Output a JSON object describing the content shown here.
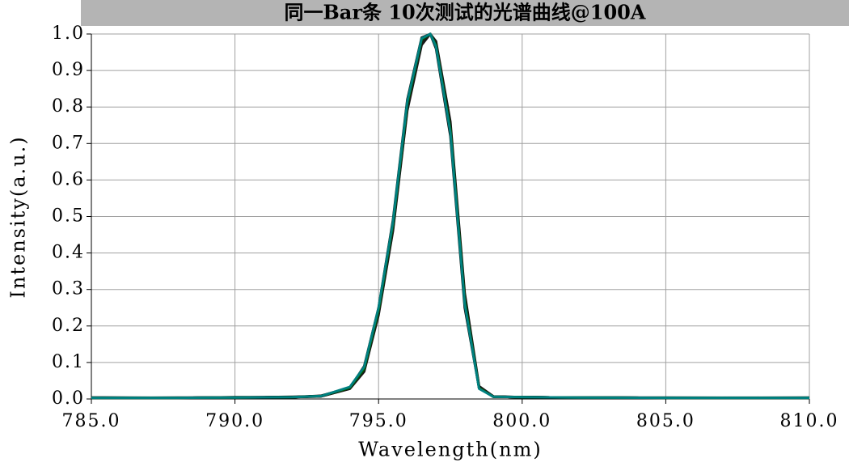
{
  "chart_data": {
    "type": "line",
    "title": "同一Bar条 10次测试的光谱曲线@100A",
    "x_label": "Wavelength(nm)",
    "y_label": "Intensity(a.u.)",
    "x": [
      785,
      788,
      790,
      792,
      793,
      794,
      794.5,
      795,
      795.5,
      796,
      796.5,
      796.8,
      797,
      797.5,
      798,
      798.5,
      799,
      800,
      802,
      805,
      810
    ],
    "series": [
      {
        "color": "#000000",
        "values": [
          0.003,
          0.003,
          0.004,
          0.005,
          0.008,
          0.03,
          0.08,
          0.24,
          0.47,
          0.8,
          0.98,
          1.0,
          0.97,
          0.74,
          0.27,
          0.03,
          0.006,
          0.005,
          0.004,
          0.003,
          0.003
        ]
      },
      {
        "color": "#0a0a0a",
        "values": [
          0.003,
          0.003,
          0.004,
          0.005,
          0.008,
          0.03,
          0.09,
          0.25,
          0.49,
          0.82,
          0.99,
          1.0,
          0.96,
          0.72,
          0.25,
          0.03,
          0.006,
          0.005,
          0.004,
          0.003,
          0.003
        ]
      },
      {
        "color": "#141414",
        "values": [
          0.004,
          0.003,
          0.004,
          0.005,
          0.007,
          0.028,
          0.075,
          0.23,
          0.46,
          0.79,
          0.97,
          1.0,
          0.98,
          0.76,
          0.29,
          0.035,
          0.007,
          0.005,
          0.004,
          0.004,
          0.003
        ]
      },
      {
        "color": "#000000",
        "values": [
          0.003,
          0.004,
          0.004,
          0.005,
          0.008,
          0.032,
          0.085,
          0.245,
          0.48,
          0.81,
          0.98,
          1.0,
          0.97,
          0.75,
          0.28,
          0.032,
          0.006,
          0.005,
          0.004,
          0.003,
          0.003
        ]
      },
      {
        "color": "#1e1e1e",
        "values": [
          0.003,
          0.003,
          0.004,
          0.006,
          0.008,
          0.029,
          0.078,
          0.235,
          0.465,
          0.795,
          0.975,
          1.0,
          0.975,
          0.745,
          0.275,
          0.031,
          0.006,
          0.005,
          0.004,
          0.003,
          0.003
        ]
      },
      {
        "color": "#000000",
        "values": [
          0.004,
          0.003,
          0.005,
          0.005,
          0.009,
          0.031,
          0.082,
          0.242,
          0.475,
          0.805,
          0.982,
          1.0,
          0.968,
          0.738,
          0.268,
          0.03,
          0.007,
          0.005,
          0.004,
          0.003,
          0.004
        ]
      },
      {
        "color": "#0f0f0f",
        "values": [
          0.003,
          0.003,
          0.004,
          0.005,
          0.008,
          0.03,
          0.081,
          0.238,
          0.472,
          0.802,
          0.98,
          1.0,
          0.972,
          0.742,
          0.272,
          0.031,
          0.006,
          0.005,
          0.004,
          0.003,
          0.003
        ]
      },
      {
        "color": "#191919",
        "values": [
          0.003,
          0.003,
          0.004,
          0.005,
          0.007,
          0.029,
          0.079,
          0.236,
          0.468,
          0.798,
          0.978,
          1.0,
          0.974,
          0.748,
          0.278,
          0.033,
          0.006,
          0.005,
          0.004,
          0.003,
          0.003
        ]
      },
      {
        "color": "#006400",
        "values": [
          0.003,
          0.003,
          0.004,
          0.005,
          0.008,
          0.031,
          0.083,
          0.243,
          0.478,
          0.808,
          0.985,
          1.0,
          0.969,
          0.739,
          0.269,
          0.03,
          0.006,
          0.005,
          0.004,
          0.003,
          0.003
        ]
      },
      {
        "color": "#008080",
        "values": [
          0.003,
          0.003,
          0.004,
          0.005,
          0.008,
          0.033,
          0.088,
          0.25,
          0.485,
          0.815,
          0.988,
          1.0,
          0.965,
          0.73,
          0.26,
          0.028,
          0.006,
          0.005,
          0.004,
          0.003,
          0.003
        ]
      }
    ],
    "xlim": [
      785,
      810
    ],
    "ylim": [
      0,
      1
    ],
    "xticks": [
      {
        "value": 785,
        "label": "785.0"
      },
      {
        "value": 790,
        "label": "790.0"
      },
      {
        "value": 795,
        "label": "795.0"
      },
      {
        "value": 800,
        "label": "800.0"
      },
      {
        "value": 805,
        "label": "805.0"
      },
      {
        "value": 810,
        "label": "810.0"
      }
    ],
    "yticks": [
      {
        "value": 0,
        "label": "0.0"
      },
      0.1,
      0.2,
      0.3,
      0.4,
      0.5,
      0.6,
      0.7,
      0.8,
      0.9,
      {
        "value": 1,
        "label": "1.0"
      }
    ],
    "grid": true
  }
}
